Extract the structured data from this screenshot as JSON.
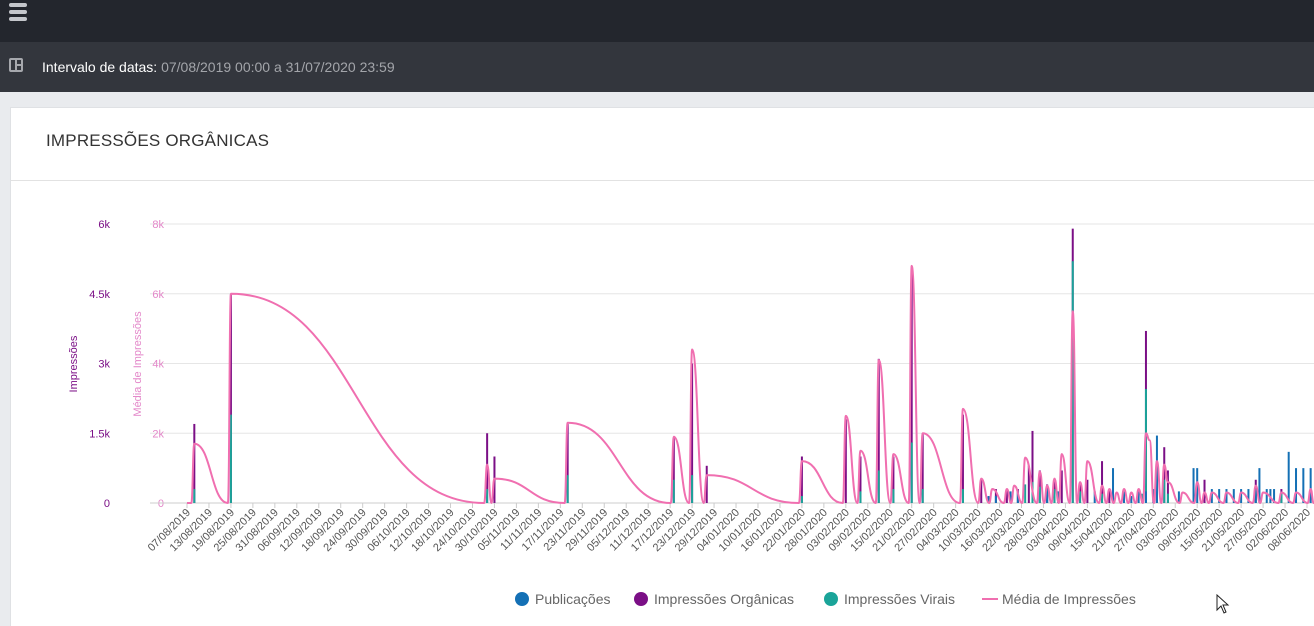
{
  "topbar": {
    "menu_icon": "hamburger-menu-icon"
  },
  "filter": {
    "icon": "panel-layout-icon",
    "label": "Intervalo de datas",
    "separator": ": ",
    "value": "07/08/2019 00:00 a 31/07/2020 23:59"
  },
  "card": {
    "title": "IMPRESSÕES ORGÂNICAS"
  },
  "chart_data": {
    "type": "bar",
    "title": "IMPRESSÕES ORGÂNICAS",
    "left_axis": {
      "label": "Impressões",
      "ticks": [
        "0",
        "1.5k",
        "3k",
        "4.5k",
        "6k"
      ],
      "range": [
        0,
        6000
      ],
      "color": "#7b0f86"
    },
    "right_axis": {
      "label": "Média de Impressões",
      "ticks": [
        "0",
        "2k",
        "4k",
        "6k",
        "8k"
      ],
      "range": [
        0,
        8000
      ],
      "color": "#e387c9"
    },
    "x_ticks": [
      "07/08/2019",
      "13/08/2019",
      "19/08/2019",
      "25/08/2019",
      "31/08/2019",
      "06/09/2019",
      "12/09/2019",
      "18/09/2019",
      "24/09/2019",
      "30/09/2019",
      "06/10/2019",
      "12/10/2019",
      "18/10/2019",
      "24/10/2019",
      "30/10/2019",
      "05/11/2019",
      "11/11/2019",
      "17/11/2019",
      "23/11/2019",
      "29/11/2019",
      "05/12/2019",
      "11/12/2019",
      "17/12/2019",
      "23/12/2019",
      "29/12/2019",
      "04/01/2020",
      "10/01/2020",
      "16/01/2020",
      "22/01/2020",
      "28/01/2020",
      "03/02/2020",
      "09/02/2020",
      "15/02/2020",
      "21/02/2020",
      "27/02/2020",
      "04/03/2020",
      "10/03/2020",
      "16/03/2020",
      "22/03/2020",
      "28/03/2020",
      "03/04/2020",
      "09/04/2020",
      "15/04/2020",
      "21/04/2020",
      "27/04/2020",
      "03/05/2020",
      "09/05/2020",
      "15/05/2020",
      "21/05/2020",
      "27/05/2020",
      "02/06/2020",
      "08/06/2020"
    ],
    "grid": true,
    "legend": {
      "position": "bottom",
      "items": [
        {
          "name": "Publicações",
          "color": "#1470b5",
          "marker": "circle"
        },
        {
          "name": "Impressões Orgânicas",
          "color": "#7b0f86",
          "marker": "circle"
        },
        {
          "name": "Impressões Virais",
          "color": "#1aa499",
          "marker": "circle"
        },
        {
          "name": "Média de Impressões",
          "color": "#f06fb0",
          "marker": "line"
        }
      ]
    },
    "series": [
      {
        "name": "Impressões Orgânicas",
        "color": "#7b0f86",
        "points": [
          [
            "09/08/2019",
            1700
          ],
          [
            "19/08/2019",
            4500
          ],
          [
            "28/10/2019",
            1500
          ],
          [
            "30/10/2019",
            1000
          ],
          [
            "19/11/2019",
            1700
          ],
          [
            "18/12/2019",
            1400
          ],
          [
            "23/12/2019",
            3000
          ],
          [
            "27/12/2019",
            800
          ],
          [
            "22/01/2020",
            1000
          ],
          [
            "03/02/2020",
            1800
          ],
          [
            "07/02/2020",
            1000
          ],
          [
            "12/02/2020",
            3100
          ],
          [
            "16/02/2020",
            1000
          ],
          [
            "21/02/2020",
            5000
          ],
          [
            "24/02/2020",
            1500
          ],
          [
            "06/03/2020",
            1900
          ],
          [
            "11/03/2020",
            500
          ],
          [
            "15/03/2020",
            300
          ],
          [
            "18/03/2020",
            300
          ],
          [
            "21/03/2020",
            300
          ],
          [
            "24/03/2020",
            800
          ],
          [
            "25/03/2020",
            1550
          ],
          [
            "27/03/2020",
            700
          ],
          [
            "29/03/2020",
            400
          ],
          [
            "31/03/2020",
            500
          ],
          [
            "02/04/2020",
            700
          ],
          [
            "05/04/2020",
            5900
          ],
          [
            "07/04/2020",
            400
          ],
          [
            "09/04/2020",
            500
          ],
          [
            "13/04/2020",
            900
          ],
          [
            "15/04/2020",
            300
          ],
          [
            "25/04/2020",
            3700
          ],
          [
            "28/04/2020",
            900
          ],
          [
            "30/04/2020",
            1200
          ],
          [
            "01/05/2020",
            700
          ],
          [
            "11/05/2020",
            500
          ],
          [
            "25/05/2020",
            500
          ],
          [
            "01/06/2020",
            300
          ]
        ]
      },
      {
        "name": "Impressões Virais",
        "color": "#1aa499",
        "points": [
          [
            "09/08/2019",
            300
          ],
          [
            "19/08/2019",
            1900
          ],
          [
            "28/10/2019",
            300
          ],
          [
            "19/11/2019",
            600
          ],
          [
            "18/12/2019",
            500
          ],
          [
            "23/12/2019",
            600
          ],
          [
            "22/01/2020",
            150
          ],
          [
            "07/02/2020",
            250
          ],
          [
            "12/02/2020",
            700
          ],
          [
            "16/02/2020",
            300
          ],
          [
            "21/02/2020",
            1300
          ],
          [
            "24/02/2020",
            300
          ],
          [
            "06/03/2020",
            300
          ],
          [
            "23/03/2020",
            400
          ],
          [
            "25/03/2020",
            450
          ],
          [
            "27/03/2020",
            350
          ],
          [
            "29/03/2020",
            250
          ],
          [
            "31/03/2020",
            300
          ],
          [
            "05/04/2020",
            5200
          ],
          [
            "07/04/2020",
            250
          ],
          [
            "13/04/2020",
            200
          ],
          [
            "24/04/2020",
            200
          ],
          [
            "25/04/2020",
            2450
          ],
          [
            "28/04/2020",
            900
          ],
          [
            "30/04/2020",
            500
          ],
          [
            "01/05/2020",
            200
          ],
          [
            "17/05/2020",
            250
          ],
          [
            "25/05/2020",
            250
          ],
          [
            "01/06/2020",
            200
          ]
        ]
      },
      {
        "name": "Publicações",
        "color": "#1470b5",
        "points": [
          [
            "13/03/2020",
            150
          ],
          [
            "15/03/2020",
            150
          ],
          [
            "19/03/2020",
            250
          ],
          [
            "21/03/2020",
            250
          ],
          [
            "29/03/2020",
            300
          ],
          [
            "01/04/2020",
            250
          ],
          [
            "11/04/2020",
            250
          ],
          [
            "16/04/2020",
            750
          ],
          [
            "19/04/2020",
            250
          ],
          [
            "21/04/2020",
            150
          ],
          [
            "23/04/2020",
            250
          ],
          [
            "25/04/2020",
            250
          ],
          [
            "27/04/2020",
            300
          ],
          [
            "28/04/2020",
            1450
          ],
          [
            "04/05/2020",
            250
          ],
          [
            "08/05/2020",
            750
          ],
          [
            "09/05/2020",
            750
          ],
          [
            "13/05/2020",
            300
          ],
          [
            "15/05/2020",
            300
          ],
          [
            "17/05/2020",
            300
          ],
          [
            "19/05/2020",
            300
          ],
          [
            "21/05/2020",
            300
          ],
          [
            "23/05/2020",
            300
          ],
          [
            "25/05/2020",
            300
          ],
          [
            "26/05/2020",
            750
          ],
          [
            "28/05/2020",
            300
          ],
          [
            "29/05/2020",
            300
          ],
          [
            "30/05/2020",
            300
          ],
          [
            "03/06/2020",
            1100
          ],
          [
            "05/06/2020",
            750
          ],
          [
            "07/06/2020",
            750
          ],
          [
            "09/06/2020",
            750
          ]
        ]
      },
      {
        "name": "Média de Impressões",
        "color": "#f06fb0",
        "type": "line",
        "points": [
          [
            "09/08/2019",
            1700
          ],
          [
            "19/08/2019",
            6000
          ],
          [
            "28/10/2019",
            1100
          ],
          [
            "30/10/2019",
            700
          ],
          [
            "19/11/2019",
            2300
          ],
          [
            "18/12/2019",
            1900
          ],
          [
            "23/12/2019",
            4400
          ],
          [
            "27/12/2019",
            800
          ],
          [
            "22/01/2020",
            1200
          ],
          [
            "03/02/2020",
            2500
          ],
          [
            "07/02/2020",
            1500
          ],
          [
            "12/02/2020",
            4100
          ],
          [
            "16/02/2020",
            1400
          ],
          [
            "21/02/2020",
            6800
          ],
          [
            "24/02/2020",
            2000
          ],
          [
            "06/03/2020",
            2700
          ],
          [
            "11/03/2020",
            700
          ],
          [
            "14/03/2020",
            400
          ],
          [
            "18/03/2020",
            400
          ],
          [
            "20/03/2020",
            500
          ],
          [
            "23/03/2020",
            1300
          ],
          [
            "27/03/2020",
            900
          ],
          [
            "29/03/2020",
            500
          ],
          [
            "31/03/2020",
            700
          ],
          [
            "02/04/2020",
            1400
          ],
          [
            "05/04/2020",
            5500
          ],
          [
            "07/04/2020",
            600
          ],
          [
            "09/04/2020",
            1200
          ],
          [
            "13/04/2020",
            500
          ],
          [
            "15/04/2020",
            400
          ],
          [
            "17/04/2020",
            300
          ],
          [
            "19/04/2020",
            400
          ],
          [
            "21/04/2020",
            300
          ],
          [
            "23/04/2020",
            400
          ],
          [
            "25/04/2020",
            2000
          ],
          [
            "26/04/2020",
            1800
          ],
          [
            "28/04/2020",
            1200
          ],
          [
            "30/04/2020",
            1100
          ],
          [
            "01/05/2020",
            600
          ],
          [
            "05/05/2020",
            300
          ],
          [
            "09/05/2020",
            600
          ],
          [
            "11/05/2020",
            300
          ],
          [
            "13/05/2020",
            300
          ],
          [
            "17/05/2020",
            300
          ],
          [
            "21/05/2020",
            300
          ],
          [
            "25/05/2020",
            500
          ],
          [
            "27/05/2020",
            300
          ],
          [
            "01/06/2020",
            300
          ],
          [
            "05/06/2020",
            300
          ],
          [
            "09/06/2020",
            400
          ]
        ]
      }
    ]
  }
}
